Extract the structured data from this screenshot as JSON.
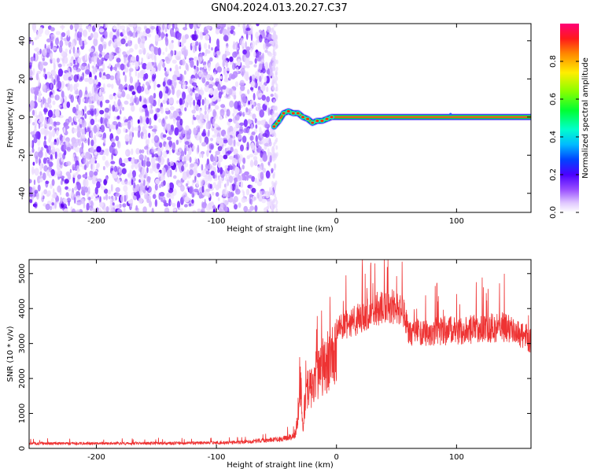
{
  "title": "GN04.2024.013.20.27.C37",
  "chart_data": [
    {
      "type": "heatmap",
      "xlabel": "Height of straight line (km)",
      "ylabel": "Frequency (Hz)",
      "xlim": [
        -256,
        162
      ],
      "ylim": [
        -50,
        49
      ],
      "xticks": [
        -200,
        -100,
        0,
        100
      ],
      "yticks": [
        -40,
        -20,
        0,
        20,
        40
      ],
      "colorbar": {
        "label": "Normalized spectral amplitude",
        "range": [
          0,
          1
        ],
        "ticks": [
          0.0,
          0.2,
          0.4,
          0.6,
          0.8
        ]
      },
      "features": {
        "noise_region_x": [
          -256,
          -52
        ],
        "signal_track": [
          {
            "x": -52,
            "y": -5
          },
          {
            "x": -48,
            "y": -2
          },
          {
            "x": -44,
            "y": 2
          },
          {
            "x": -40,
            "y": 3
          },
          {
            "x": -36,
            "y": 2
          },
          {
            "x": -32,
            "y": 2
          },
          {
            "x": -28,
            "y": 0
          },
          {
            "x": -24,
            "y": -1
          },
          {
            "x": -20,
            "y": -3
          },
          {
            "x": -16,
            "y": -2
          },
          {
            "x": -12,
            "y": -2
          },
          {
            "x": -8,
            "y": -1
          },
          {
            "x": -4,
            "y": 0
          },
          {
            "x": 0,
            "y": 0
          },
          {
            "x": 162,
            "y": 0
          }
        ]
      }
    },
    {
      "type": "line",
      "xlabel": "Height of straight line (km)",
      "ylabel": "SNR (10 * v/v)",
      "xlim": [
        -256,
        162
      ],
      "ylim": [
        0,
        5400
      ],
      "xticks": [
        -200,
        -100,
        0,
        100
      ],
      "yticks": [
        0,
        1000,
        2000,
        3000,
        4000,
        5000
      ],
      "color": "#ee3333",
      "envelope": [
        {
          "x": -256,
          "y": 180
        },
        {
          "x": -150,
          "y": 190
        },
        {
          "x": -80,
          "y": 220
        },
        {
          "x": -45,
          "y": 350
        },
        {
          "x": -35,
          "y": 450
        },
        {
          "x": -32,
          "y": 1200
        },
        {
          "x": -30,
          "y": 2800
        },
        {
          "x": -28,
          "y": 1000
        },
        {
          "x": -25,
          "y": 2200
        },
        {
          "x": -15,
          "y": 3000
        },
        {
          "x": -5,
          "y": 3600
        },
        {
          "x": 5,
          "y": 3900
        },
        {
          "x": 20,
          "y": 4200
        },
        {
          "x": 40,
          "y": 4600
        },
        {
          "x": 55,
          "y": 4500
        },
        {
          "x": 60,
          "y": 3700
        },
        {
          "x": 100,
          "y": 3800
        },
        {
          "x": 140,
          "y": 3900
        },
        {
          "x": 162,
          "y": 3500
        }
      ]
    }
  ]
}
